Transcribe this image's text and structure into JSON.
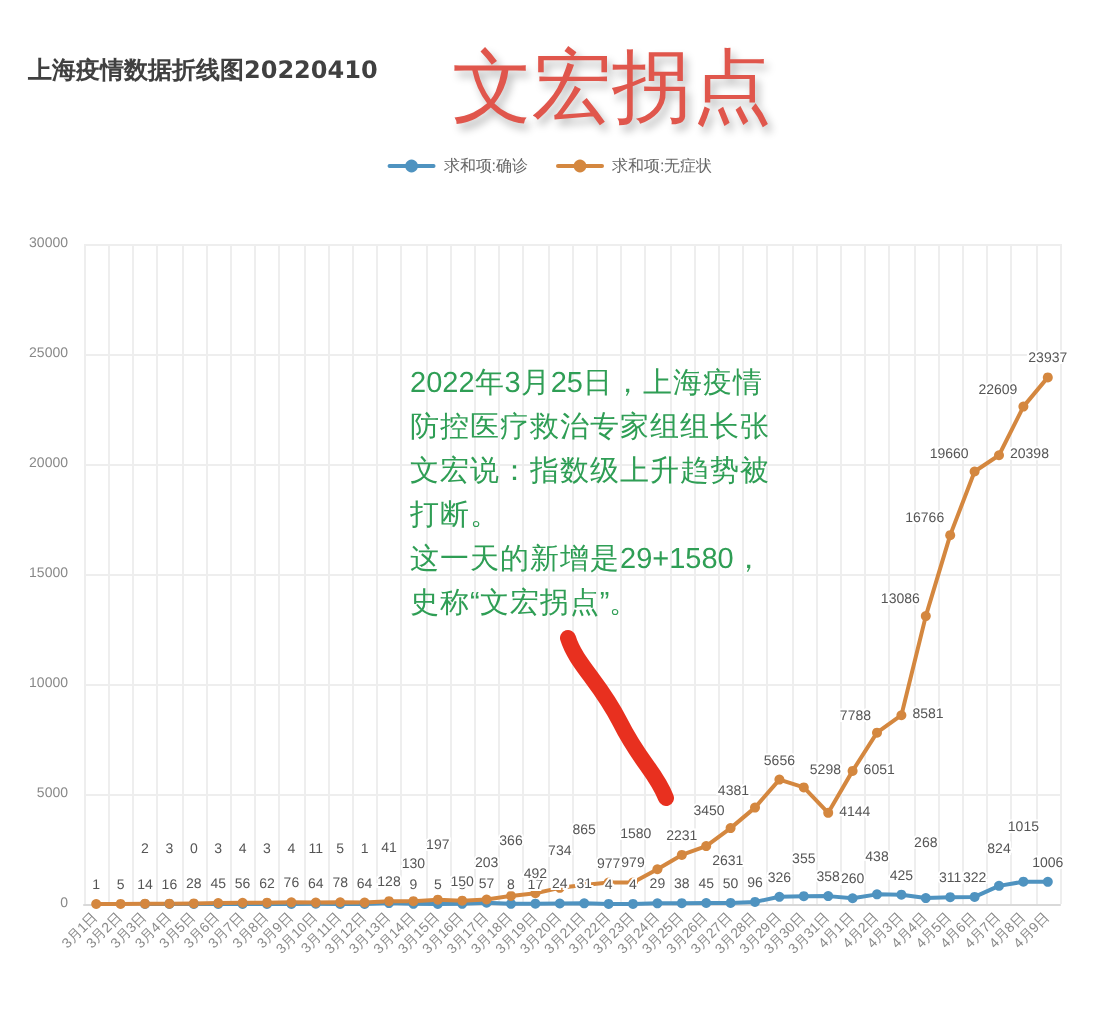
{
  "chart_data": {
    "type": "line",
    "title": "上海疫情数据折线图20220410",
    "subtitle": "文宏拐点",
    "annotations": [
      "2022年3月25日，上海疫情防控医疗救治专家组组长张文宏说：指数级上升趋势被打断。",
      "这一天的新增是29+1580，史称“文宏拐点”。"
    ],
    "categories": [
      "3月1日",
      "3月2日",
      "3月3日",
      "3月4日",
      "3月5日",
      "3月6日",
      "3月7日",
      "3月8日",
      "3月9日",
      "3月10日",
      "3月11日",
      "3月12日",
      "3月13日",
      "3月14日",
      "3月15日",
      "3月16日",
      "3月17日",
      "3月18日",
      "3月19日",
      "3月20日",
      "3月21日",
      "3月22日",
      "3月23日",
      "3月24日",
      "3月25日",
      "3月26日",
      "3月27日",
      "3月28日",
      "3月29日",
      "3月30日",
      "3月31日",
      "4月1日",
      "4月2日",
      "4月3日",
      "4月4日",
      "4月5日",
      "4月6日",
      "4月7日",
      "4月8日",
      "4月9日"
    ],
    "series": [
      {
        "name": "求和项:确诊",
        "color": "#4f93c0",
        "values": [
          null,
          null,
          2,
          3,
          0,
          3,
          4,
          3,
          4,
          11,
          5,
          1,
          41,
          9,
          5,
          8,
          57,
          8,
          17,
          24,
          31,
          4,
          4,
          29,
          38,
          45,
          50,
          96,
          326,
          355,
          358,
          260,
          438,
          425,
          268,
          311,
          322,
          824,
          1015,
          1006
        ]
      },
      {
        "name": "求和项:无症状",
        "color": "#d4873f",
        "values": [
          1,
          5,
          14,
          16,
          28,
          45,
          56,
          62,
          76,
          64,
          78,
          64,
          128,
          130,
          197,
          150,
          203,
          366,
          492,
          734,
          865,
          977,
          979,
          1580,
          2231,
          2631,
          3450,
          4381,
          5656,
          5298,
          4144,
          6051,
          7788,
          8581,
          13086,
          16766,
          19660,
          20398,
          22609,
          23937
        ]
      }
    ],
    "ylim": [
      0,
      30000
    ],
    "yticks": [
      0,
      5000,
      10000,
      15000,
      20000,
      25000,
      30000
    ],
    "grid": true,
    "legend": "top",
    "marker": "circle",
    "data_labels": true
  }
}
